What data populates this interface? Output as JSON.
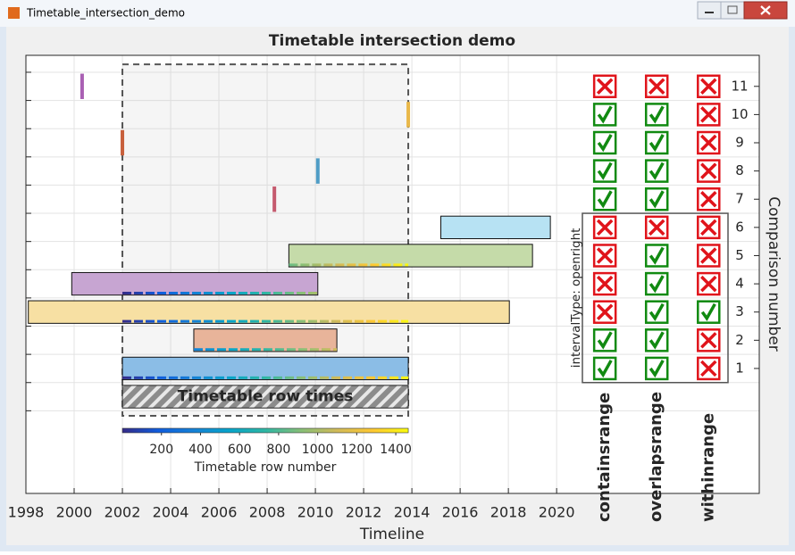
{
  "window": {
    "title": "Timetable_intersection_demo"
  },
  "chart_data": {
    "type": "timeline",
    "title": "Timetable intersection demo",
    "xlabel": "Timeline",
    "y2label": "Comparison number",
    "xlim": [
      1998,
      2028.4
    ],
    "xticks": [
      1998,
      2000,
      2002,
      2004,
      2006,
      2008,
      2010,
      2012,
      2014,
      2016,
      2018,
      2020
    ],
    "ylim": [
      -3.43,
      12.1
    ],
    "yticks": [
      -0.5,
      0.5,
      1.5,
      2.5,
      3.5,
      4.5,
      5.5,
      6.5,
      7.5,
      8.5,
      9.5,
      10.5,
      11.5
    ],
    "y2lim": [
      -3.43,
      12.1
    ],
    "y2ticks": [
      1,
      2,
      3,
      4,
      5,
      6,
      7,
      8,
      9,
      10,
      11
    ],
    "grid": true,
    "starts": [
      2002.0,
      2004.96,
      1998.1,
      1999.9,
      2008.9,
      2015.2,
      2008.3,
      2010.1,
      2002.0,
      2013.85,
      2000.33
    ],
    "ends": [
      2013.85,
      2010.89,
      2018.04,
      2010.1,
      2019.0,
      2019.74,
      2008.3,
      2010.1,
      2002.0,
      2013.85,
      2000.33
    ],
    "colors": [
      "#8bbde6",
      "#e8b49a",
      "#f7e0a3",
      "#c7a5d2",
      "#c5dba9",
      "#b7e2f3",
      "#c55a6e",
      "#4f9dc6",
      "#c8603c",
      "#e9b84a",
      "#a960b3"
    ],
    "row_times": {
      "label": "Timetable row times",
      "start": 2002.0,
      "end": 2013.85
    },
    "colorbar": {
      "label": "Timetable row number",
      "lim": [
        0,
        1464
      ],
      "ticks": [
        200,
        400,
        600,
        800,
        1000,
        1200,
        1400
      ]
    },
    "functions": [
      "containsrange",
      "overlapsrange",
      "withinrange"
    ],
    "results": [
      [
        true,
        true,
        false,
        false,
        false,
        false,
        true,
        true,
        true,
        true,
        false
      ],
      [
        true,
        true,
        true,
        true,
        true,
        false,
        true,
        true,
        true,
        true,
        false
      ],
      [
        false,
        false,
        true,
        false,
        false,
        false,
        false,
        false,
        false,
        false,
        false
      ]
    ],
    "interval_type_label": "intervalType: openright"
  }
}
